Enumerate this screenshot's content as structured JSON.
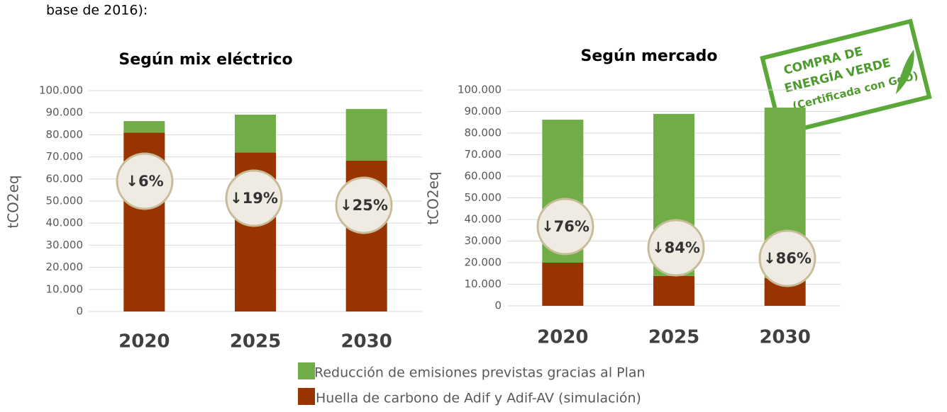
{
  "intro": "base de 2016):",
  "stamp": {
    "lines": [
      "COMPRA DE",
      "ENERGÍA VERDE",
      "(Certificada con GdO)"
    ]
  },
  "chart_data": [
    {
      "type": "bar",
      "stacked": true,
      "title": "Según mix eléctrico",
      "y_label": "tCO2eq",
      "categories": [
        "2020",
        "2025",
        "2030"
      ],
      "series": [
        {
          "name": "Huella de carbono de Adif y Adif-AV (simulación)",
          "color": "#993300",
          "values": [
            81000,
            72000,
            68300
          ]
        },
        {
          "name": "Reducción de emisiones previstas gracias al Plan",
          "color": "#70ad47",
          "values": [
            5200,
            17100,
            23400
          ]
        }
      ],
      "ylim": [
        0,
        100000
      ],
      "yticks": [
        0,
        {
          "value": 10000,
          "label": "10.000"
        },
        {
          "value": 20000,
          "label": "20.000"
        },
        {
          "value": 30000,
          "label": "30.000"
        },
        {
          "value": 40000,
          "label": "40.000"
        },
        {
          "value": 50000,
          "label": "50.000"
        },
        {
          "value": 60000,
          "label": "60.000"
        },
        {
          "value": 70000,
          "label": "70.000"
        },
        {
          "value": 80000,
          "label": "80.000"
        },
        {
          "value": 90000,
          "label": "90.000"
        },
        {
          "value": 100000,
          "label": "100.000"
        }
      ],
      "grid": true,
      "annotations": [
        "↓6%",
        "↓19%",
        "↓25%"
      ]
    },
    {
      "type": "bar",
      "stacked": true,
      "title": "Según mercado",
      "y_label": "tCO2eq",
      "categories": [
        "2020",
        "2025",
        "2030"
      ],
      "series": [
        {
          "color": "#993300",
          "values": [
            20000,
            13800,
            12800
          ]
        },
        {
          "color": "#70ad47",
          "values": [
            66200,
            75100,
            79000
          ]
        }
      ],
      "ylim": [
        0,
        100000
      ],
      "yticks": [
        0,
        {
          "value": 10000,
          "label": "10.000"
        },
        {
          "value": 20000,
          "label": "20.000"
        },
        {
          "value": 30000,
          "label": "30.000"
        },
        {
          "value": 40000,
          "label": "40.000"
        },
        {
          "value": 50000,
          "label": "50.000"
        },
        {
          "value": 60000,
          "label": "60.000"
        },
        {
          "value": 70000,
          "label": "70.000"
        },
        {
          "value": 80000,
          "label": "80.000"
        },
        {
          "value": 90000,
          "label": "90.000"
        },
        {
          "value": 100000,
          "label": "100.000"
        }
      ],
      "grid": true,
      "annotations": [
        "↓76%",
        "↓84%",
        "↓86%"
      ]
    }
  ]
}
